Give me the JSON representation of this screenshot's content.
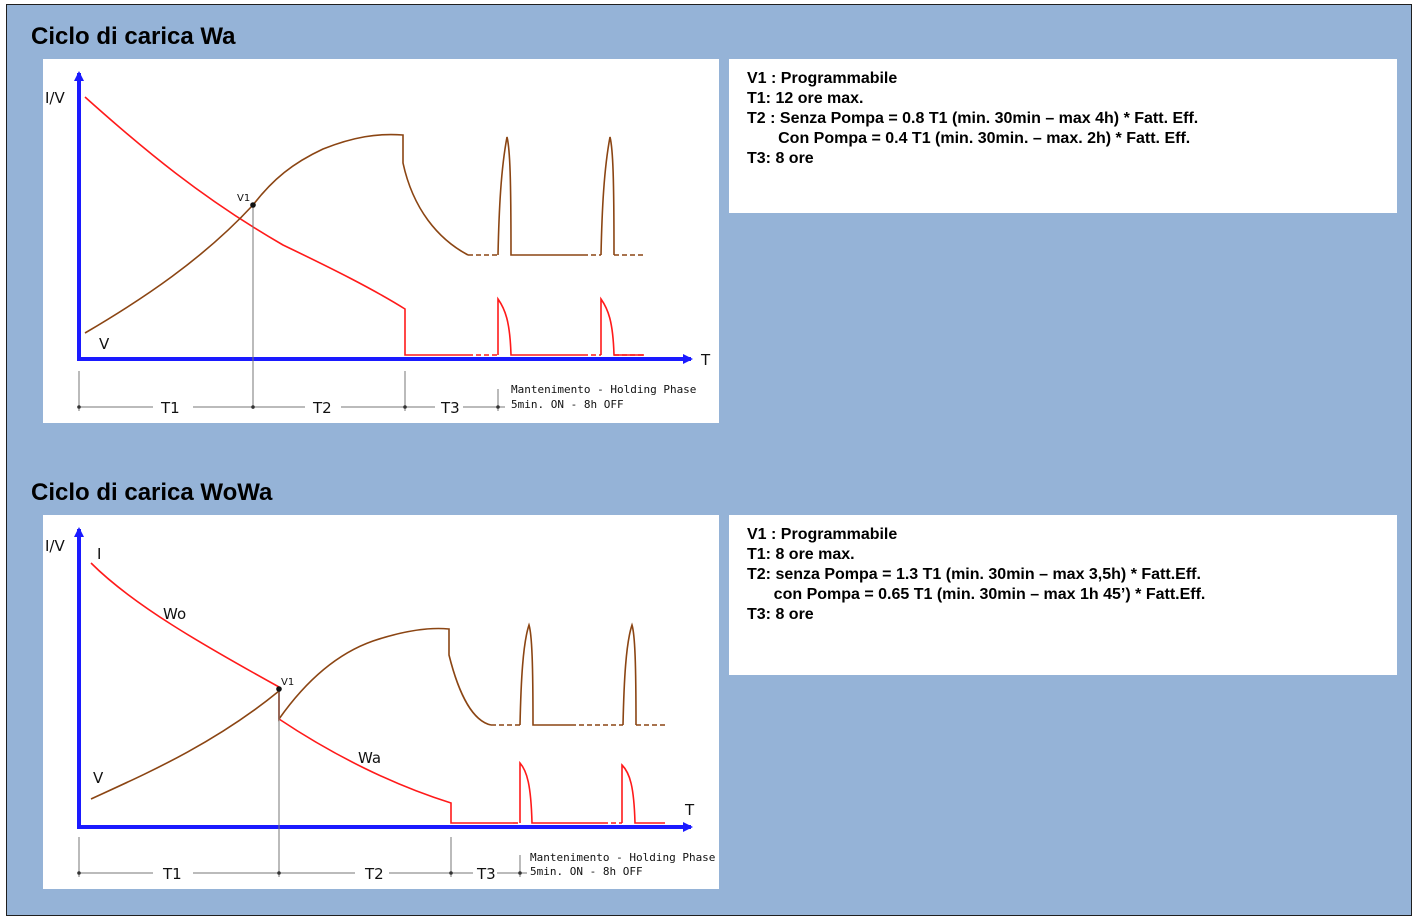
{
  "sections": [
    {
      "title": "Ciclo di carica Wa",
      "chart": {
        "y_axis_label": "I/V",
        "x_axis_label": "T",
        "point_label": "V1",
        "voltage_curve_label": "V",
        "segments": [
          "T1",
          "T2",
          "T3"
        ],
        "holding_phase": [
          "Mantenimento - Holding Phase",
          "5min. ON - 8h OFF"
        ]
      },
      "notes": [
        "V1 : Programmabile",
        "T1: 12 ore max.",
        "T2 : Senza Pompa = 0.8 T1 (min. 30min – max 4h) * Fatt. Eff.",
        "       Con Pompa = 0.4 T1 (min. 30min. – max. 2h) * Fatt. Eff.",
        "T3: 8 ore"
      ]
    },
    {
      "title": "Ciclo di carica WoWa",
      "chart": {
        "y_axis_label": "I/V",
        "x_axis_label": "T",
        "point_label": "V1",
        "current_curve_label": "I",
        "voltage_curve_label": "V",
        "phase1_label": "Wo",
        "phase2_label": "Wa",
        "segments": [
          "T1",
          "T2",
          "T3"
        ],
        "holding_phase": [
          "Mantenimento - Holding Phase",
          "5min. ON - 8h OFF"
        ]
      },
      "notes": [
        "V1 : Programmabile",
        "T1: 8 ore max.",
        "T2: senza Pompa = 1.3 T1 (min. 30min – max 3,5h) * Fatt.Eff.",
        "      con Pompa = 0.65 T1 (min. 30min – max 1h 45’) * Fatt.Eff.",
        "T3: 8 ore"
      ]
    }
  ],
  "colors": {
    "background": "#95b3d7",
    "axis": "#1a1aff",
    "current_curve": "#ff1a1a",
    "voltage_curve": "#8b4513"
  }
}
